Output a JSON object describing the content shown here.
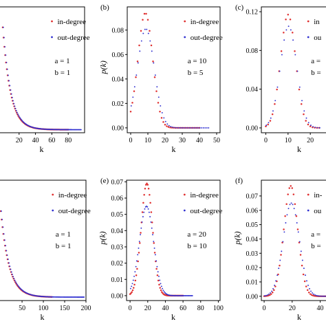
{
  "chart_data": [
    {
      "panel": "a",
      "type": "scatter",
      "label": "",
      "xlabel": "k",
      "ylabel": "",
      "xlim": [
        -5,
        100
      ],
      "ylim": [
        -0.003,
        0.12
      ],
      "xticks": [
        20,
        40,
        60,
        80
      ],
      "yticks": [],
      "legend": [
        "in-degree",
        "out-degree"
      ],
      "params": [
        "a = 1",
        "b = 1"
      ],
      "series": [
        {
          "name": "in-degree",
          "color": "#e03030",
          "dist": "geometric",
          "p": 0.1,
          "xmax": 80,
          "step": 1
        },
        {
          "name": "out-degree",
          "color": "#3030d0",
          "dist": "geometric",
          "p": 0.1,
          "xmax": 95,
          "step": 1
        }
      ]
    },
    {
      "panel": "b",
      "type": "scatter",
      "label": "(b)",
      "xlabel": "k",
      "ylabel": "p(k)",
      "xlim": [
        -2,
        52
      ],
      "ylim": [
        -0.004,
        0.099
      ],
      "xticks": [
        0,
        10,
        20,
        30,
        40,
        50
      ],
      "yticks": [
        0.0,
        0.02,
        0.04,
        0.06,
        0.08
      ],
      "yformat": 2,
      "legend": [
        "in-degree",
        "out-degree"
      ],
      "params": [
        "a = 10",
        "b = 5"
      ],
      "series": [
        {
          "name": "in-degree",
          "color": "#e03030",
          "dist": "gauss",
          "mu": 8.5,
          "sigma": 4.3,
          "peak": 0.094,
          "xmin": 0,
          "xmax": 40,
          "step": 1
        },
        {
          "name": "out-degree",
          "color": "#3030d0",
          "dist": "gauss",
          "mu": 8.5,
          "sigma": 4.9,
          "peak": 0.081,
          "xmin": 0,
          "xmax": 45,
          "step": 1
        }
      ]
    },
    {
      "panel": "c",
      "type": "scatter",
      "label": "(c)",
      "xlabel": "k",
      "ylabel": "",
      "xlim": [
        -2,
        32
      ],
      "ylim": [
        -0.005,
        0.125
      ],
      "xticks": [
        0,
        10,
        20
      ],
      "yticks": [
        0.0,
        0.04,
        0.08,
        0.12
      ],
      "yformat": 2,
      "legend": [
        "in",
        "ou"
      ],
      "params": [
        "a =",
        "b ="
      ],
      "series": [
        {
          "name": "in",
          "color": "#e03030",
          "dist": "gauss",
          "mu": 10,
          "sigma": 3.4,
          "peak": 0.117,
          "xmin": 0,
          "xmax": 24,
          "step": 1
        },
        {
          "name": "ou",
          "color": "#3030d0",
          "dist": "gauss",
          "mu": 10,
          "sigma": 3.7,
          "peak": 0.105,
          "xmin": 0,
          "xmax": 24,
          "step": 1
        }
      ]
    },
    {
      "panel": "d",
      "type": "scatter",
      "label": "",
      "xlabel": "k",
      "ylabel": "",
      "xlim": [
        -5,
        200
      ],
      "ylim": [
        -0.002,
        0.068
      ],
      "xticks": [
        50,
        100,
        150,
        200
      ],
      "yticks": [],
      "legend": [
        "in-degree",
        "out-degree"
      ],
      "params": [
        "a = 1",
        "b = 1"
      ],
      "series": [
        {
          "name": "in-degree",
          "color": "#e03030",
          "dist": "geometric",
          "p": 0.05,
          "xmax": 120,
          "step": 2
        },
        {
          "name": "out-degree",
          "color": "#3030d0",
          "dist": "geometric",
          "p": 0.05,
          "xmax": 195,
          "step": 2
        }
      ]
    },
    {
      "panel": "e",
      "type": "scatter",
      "label": "(e)",
      "xlabel": "k",
      "ylabel": "p(k)",
      "xlim": [
        -4,
        102
      ],
      "ylim": [
        -0.003,
        0.071
      ],
      "xticks": [
        0,
        20,
        40,
        60,
        80,
        100
      ],
      "yticks": [
        0.0,
        0.01,
        0.02,
        0.03,
        0.04,
        0.05,
        0.06,
        0.07
      ],
      "yformat": 2,
      "legend": [
        "in-degree",
        "out-degree"
      ],
      "params": [
        "a = 20",
        "b = 10"
      ],
      "series": [
        {
          "name": "in-degree",
          "color": "#e03030",
          "dist": "gauss",
          "mu": 19,
          "sigma": 6.5,
          "peak": 0.069,
          "xmin": 0,
          "xmax": 60,
          "step": 1
        },
        {
          "name": "out-degree",
          "color": "#3030d0",
          "dist": "gauss",
          "mu": 18,
          "sigma": 8.0,
          "peak": 0.055,
          "xmin": 0,
          "xmax": 70,
          "step": 1
        }
      ]
    },
    {
      "panel": "f",
      "type": "scatter",
      "label": "(f)",
      "xlabel": "k",
      "ylabel": "p(k)",
      "xlim": [
        -2,
        52
      ],
      "ylim": [
        -0.003,
        0.081
      ],
      "xticks": [
        0,
        20,
        40
      ],
      "yticks": [
        0.0,
        0.01,
        0.02,
        0.03,
        0.04,
        0.05,
        0.06,
        0.07
      ],
      "yformat": 2,
      "legend": [
        "in-",
        "ou"
      ],
      "params": [
        "a =",
        "b ="
      ],
      "series": [
        {
          "name": "in-",
          "color": "#e03030",
          "dist": "gauss",
          "mu": 19,
          "sigma": 5.0,
          "peak": 0.077,
          "xmin": 0,
          "xmax": 45,
          "step": 1
        },
        {
          "name": "ou",
          "color": "#3030d0",
          "dist": "gauss",
          "mu": 19,
          "sigma": 5.8,
          "peak": 0.065,
          "xmin": 0,
          "xmax": 45,
          "step": 1
        }
      ]
    }
  ]
}
